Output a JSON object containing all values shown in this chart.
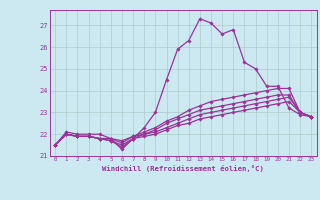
{
  "xlabel": "Windchill (Refroidissement éolien,°C)",
  "background_color": "#cce8f0",
  "line_color": "#993399",
  "grid_color": "#aacccc",
  "xlim": [
    -0.5,
    23.5
  ],
  "ylim": [
    21.0,
    27.7
  ],
  "yticks": [
    21,
    22,
    23,
    24,
    25,
    26,
    27
  ],
  "xticks": [
    0,
    1,
    2,
    3,
    4,
    5,
    6,
    7,
    8,
    9,
    10,
    11,
    12,
    13,
    14,
    15,
    16,
    17,
    18,
    19,
    20,
    21,
    22,
    23
  ],
  "series": [
    {
      "x": [
        0,
        1,
        2,
        3,
        4,
        5,
        6,
        7,
        8,
        9,
        10,
        11,
        12,
        13,
        14,
        15,
        16,
        17,
        18,
        19,
        20,
        21,
        22,
        23
      ],
      "y": [
        21.5,
        22.1,
        22.0,
        22.0,
        22.0,
        21.8,
        21.3,
        21.8,
        22.3,
        23.0,
        24.5,
        25.9,
        26.3,
        27.3,
        27.1,
        26.6,
        26.8,
        25.3,
        25.0,
        24.2,
        24.2,
        23.2,
        22.9,
        22.8
      ]
    },
    {
      "x": [
        0,
        1,
        2,
        3,
        4,
        5,
        6,
        7,
        8,
        9,
        10,
        11,
        12,
        13,
        14,
        15,
        16,
        17,
        18,
        19,
        20,
        21,
        22,
        23
      ],
      "y": [
        21.5,
        22.0,
        21.9,
        21.9,
        21.8,
        21.8,
        21.7,
        21.9,
        22.1,
        22.3,
        22.6,
        22.8,
        23.1,
        23.3,
        23.5,
        23.6,
        23.7,
        23.8,
        23.9,
        24.0,
        24.1,
        24.1,
        23.0,
        22.8
      ]
    },
    {
      "x": [
        0,
        1,
        2,
        3,
        4,
        5,
        6,
        7,
        8,
        9,
        10,
        11,
        12,
        13,
        14,
        15,
        16,
        17,
        18,
        19,
        20,
        21,
        22,
        23
      ],
      "y": [
        21.5,
        22.0,
        21.9,
        21.9,
        21.8,
        21.8,
        21.6,
        21.9,
        22.0,
        22.2,
        22.5,
        22.7,
        22.9,
        23.1,
        23.2,
        23.3,
        23.4,
        23.5,
        23.6,
        23.7,
        23.8,
        23.8,
        23.0,
        22.8
      ]
    },
    {
      "x": [
        0,
        1,
        2,
        3,
        4,
        5,
        6,
        7,
        8,
        9,
        10,
        11,
        12,
        13,
        14,
        15,
        16,
        17,
        18,
        19,
        20,
        21,
        22,
        23
      ],
      "y": [
        21.5,
        22.0,
        21.9,
        21.9,
        21.8,
        21.7,
        21.5,
        21.8,
        22.0,
        22.1,
        22.3,
        22.5,
        22.7,
        22.9,
        23.0,
        23.1,
        23.2,
        23.3,
        23.4,
        23.5,
        23.6,
        23.7,
        23.0,
        22.8
      ]
    },
    {
      "x": [
        0,
        1,
        2,
        3,
        4,
        5,
        6,
        7,
        8,
        9,
        10,
        11,
        12,
        13,
        14,
        15,
        16,
        17,
        18,
        19,
        20,
        21,
        22,
        23
      ],
      "y": [
        21.5,
        22.0,
        21.9,
        21.9,
        21.8,
        21.7,
        21.4,
        21.8,
        21.9,
        22.0,
        22.2,
        22.4,
        22.5,
        22.7,
        22.8,
        22.9,
        23.0,
        23.1,
        23.2,
        23.3,
        23.4,
        23.5,
        23.0,
        22.8
      ]
    }
  ]
}
